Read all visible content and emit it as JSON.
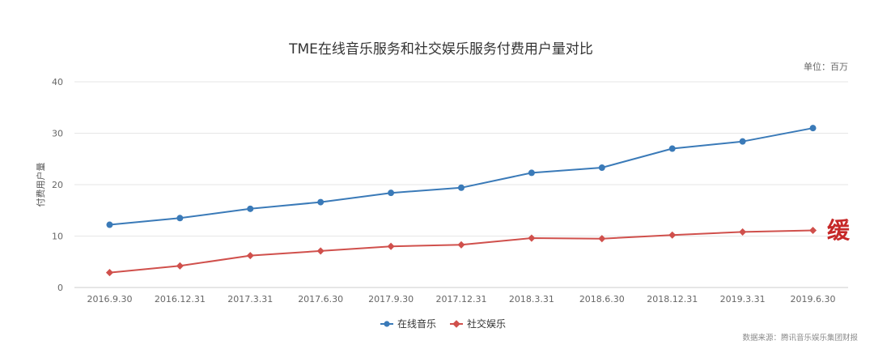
{
  "chart_data": {
    "type": "line",
    "title": "TME在线音乐服务和社交娱乐服务付费用户量对比",
    "unit": "单位：百万",
    "ylabel": "付费用户量",
    "xlabel": "",
    "categories": [
      "2016.9.30",
      "2016.12.31",
      "2017.3.31",
      "2017.6.30",
      "2017.9.30",
      "2017.12.31",
      "2018.3.31",
      "2018.6.30",
      "2018.12.31",
      "2019.3.31",
      "2019.6.30"
    ],
    "ylim": [
      0,
      40
    ],
    "yticks": [
      0,
      10,
      20,
      30,
      40
    ],
    "grid": true,
    "legend_position": "bottom",
    "series": [
      {
        "name": "在线音乐",
        "color": "#3a7ab8",
        "marker": "circle",
        "values": [
          12.2,
          13.5,
          15.3,
          16.6,
          18.4,
          19.4,
          22.3,
          23.3,
          27.0,
          28.4,
          31.0
        ]
      },
      {
        "name": "社交娱乐",
        "color": "#d0504c",
        "marker": "diamond",
        "values": [
          2.9,
          4.2,
          6.2,
          7.1,
          8.0,
          8.3,
          9.6,
          9.5,
          10.2,
          10.8,
          11.1
        ]
      }
    ],
    "annotation": "缓",
    "annotation_color": "#c62828",
    "source": "数据来源：腾讯音乐娱乐集团财报"
  }
}
